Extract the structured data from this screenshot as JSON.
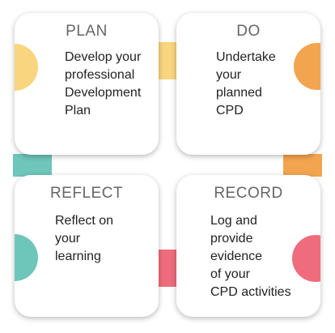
{
  "colors": {
    "plan": "#F8D57E",
    "do": "#F3A44F",
    "reflect": "#6EC5B9",
    "record": "#EE6C7C"
  },
  "cards": {
    "plan": {
      "title": "PLAN",
      "lines": [
        "Develop your",
        "professional",
        "Development",
        "Plan"
      ]
    },
    "do": {
      "title": "DO",
      "lines": [
        "Undertake",
        "your",
        "planned",
        "CPD"
      ]
    },
    "reflect": {
      "title": "REFLECT",
      "lines": [
        "Reflect on",
        "your",
        "learning"
      ]
    },
    "record": {
      "title": "RECORD",
      "lines": [
        "Log and",
        "provide",
        "evidence",
        "of your",
        "CPD activities"
      ]
    }
  }
}
